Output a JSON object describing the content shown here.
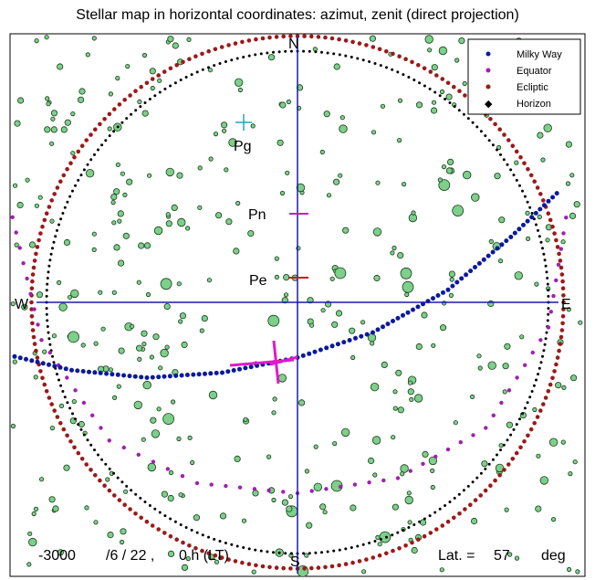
{
  "title": "Stellar map in horizontal coordinates: azimut, zenit (direct projection)",
  "chart_data": {
    "type": "scatter",
    "title": "Stellar map in horizontal coordinates: azimut, zenit (direct projection)",
    "xlabel": "",
    "ylabel": "",
    "xlim": [
      -1.03,
      1.03
    ],
    "ylim": [
      -1.06,
      1.06
    ],
    "grid": false,
    "legend_position": "top-right",
    "cardinal_labels": {
      "north": "N",
      "south": "S",
      "east": "E",
      "west": "W"
    },
    "pole_labels": [
      {
        "text": "Pg",
        "x": -0.22,
        "y": 0.71
      },
      {
        "text": "Pn",
        "x": 0.0,
        "y": 0.36
      },
      {
        "text": "Pe",
        "x": 0.0,
        "y": 0.1
      }
    ],
    "series": [
      {
        "name": "Milky Way",
        "color": "#0a1a9c",
        "curve": "milky_way"
      },
      {
        "name": "Equator",
        "color": "#a020b0",
        "curve": "equator"
      },
      {
        "name": "Ecliptic",
        "color": "#9a1a1a",
        "curve": "ecliptic"
      },
      {
        "name": "Horizon",
        "color": "#000000",
        "curve": "horizon"
      }
    ],
    "curves": {
      "horizon": {
        "radius": 1.0,
        "center": [
          0,
          0
        ]
      },
      "ecliptic": {
        "radius": 1.06,
        "center": [
          0,
          0
        ]
      },
      "milky_way": [
        [
          -1.15,
          -0.21
        ],
        [
          -0.9,
          -0.27
        ],
        [
          -0.6,
          -0.3
        ],
        [
          -0.3,
          -0.28
        ],
        [
          0.0,
          -0.22
        ],
        [
          0.3,
          -0.12
        ],
        [
          0.6,
          0.05
        ],
        [
          0.85,
          0.26
        ],
        [
          1.05,
          0.45
        ]
      ],
      "equator": [
        [
          -1.15,
          0.4
        ],
        [
          -1.02,
          -0.15
        ],
        [
          -0.75,
          -0.55
        ],
        [
          -0.4,
          -0.72
        ],
        [
          0.0,
          -0.76
        ],
        [
          0.4,
          -0.7
        ],
        [
          0.75,
          -0.5
        ],
        [
          1.0,
          -0.1
        ],
        [
          1.08,
          0.4
        ]
      ]
    },
    "stars_seed": 57,
    "star_count": 430,
    "footer": {
      "year": "-3000",
      "date": "/6 / 22 ,",
      "time": "0 h (LT)",
      "lat_label": "Lat. =",
      "lat_value": "57",
      "lat_unit": "deg"
    }
  }
}
